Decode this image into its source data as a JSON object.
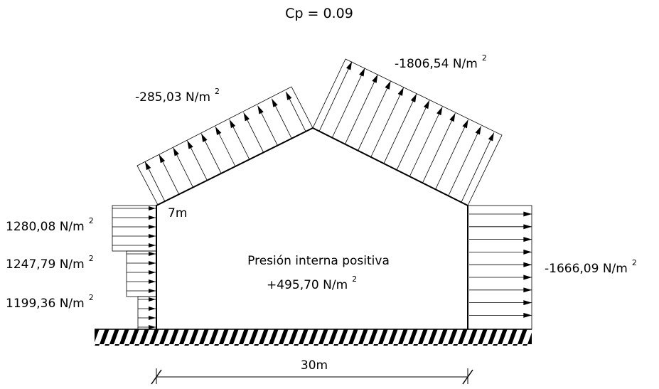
{
  "title": "Cp = 0.09",
  "labels": {
    "roof_left": {
      "text": "-285,03 N/m",
      "sup": "2"
    },
    "roof_right": {
      "text": "-1806,54 N/m",
      "sup": "2"
    },
    "wall_left_top": {
      "text": "1280,08 N/m",
      "sup": "2"
    },
    "wall_left_mid": {
      "text": "1247,79 N/m",
      "sup": "2"
    },
    "wall_left_bottom": {
      "text": "1199,36 N/m",
      "sup": "2"
    },
    "wall_right": {
      "text": "-1666,09 N/m",
      "sup": "2"
    },
    "height": "7m",
    "width": "30m",
    "internal_line1": "Presión interna positiva",
    "internal_line2": {
      "text": "+495,70 N/m",
      "sup": "2"
    }
  },
  "icons": [
    "pressure-arrow-icon",
    "ground-hatch-icon",
    "dimension-tick-icon"
  ]
}
